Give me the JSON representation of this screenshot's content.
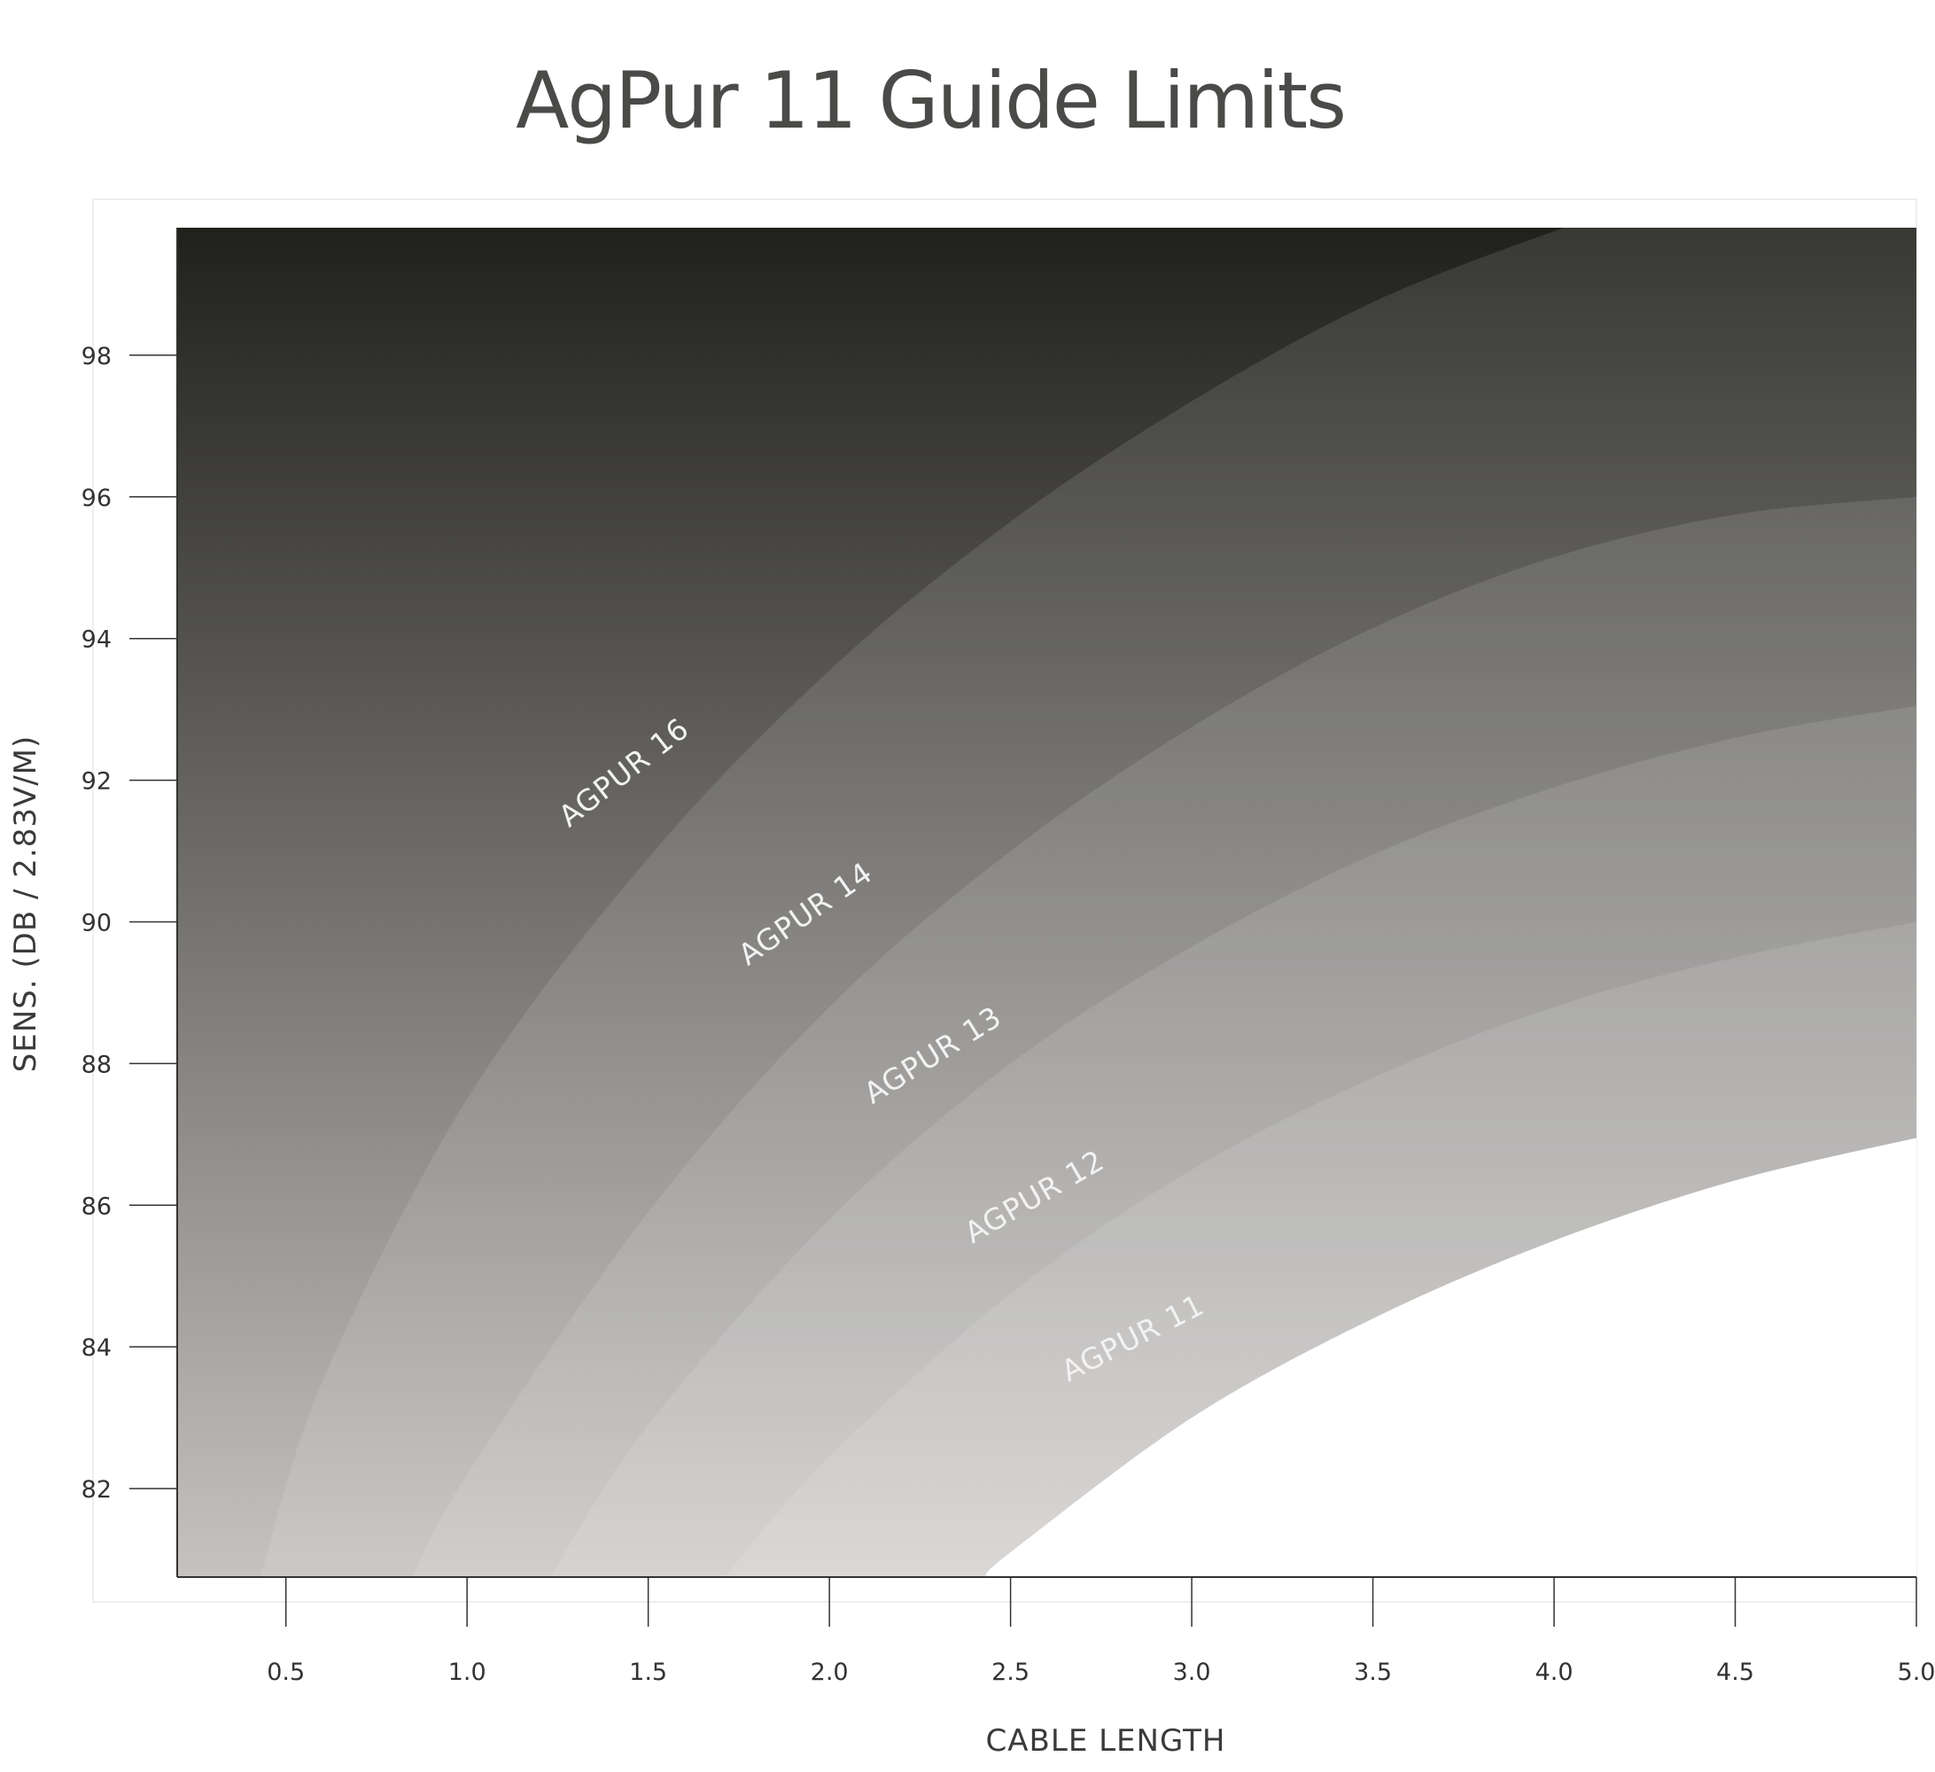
{
  "chart_data": {
    "type": "area",
    "title": "AgPur 11 Guide Limits",
    "xlabel": "CABLE LENGTH",
    "ylabel": "SENS. (DB / 2.83V/M)",
    "xlim": [
      0.2,
      5.0
    ],
    "ylim": [
      80.75,
      99.8
    ],
    "x_ticks": [
      0.5,
      1.0,
      1.5,
      2.0,
      2.5,
      3.0,
      3.5,
      4.0,
      4.5,
      5.0
    ],
    "x_tick_labels": [
      "0.5",
      "1.0",
      "1.5",
      "2.0",
      "2.5",
      "3.0",
      "3.5",
      "4.0",
      "4.5",
      "5.0"
    ],
    "y_ticks": [
      82,
      84,
      86,
      88,
      90,
      92,
      94,
      96,
      98
    ],
    "y_tick_labels": [
      "82",
      "84",
      "86",
      "88",
      "90",
      "92",
      "94",
      "96",
      "98"
    ],
    "grid": false,
    "legend": "none",
    "series": [
      {
        "name": "AGPUR 16",
        "label_at": [
          1.45,
          92.0
        ],
        "label_angle": -38,
        "x": [
          0.43,
          0.6,
          1.0,
          1.5,
          2.0,
          2.5,
          3.0,
          3.5,
          4.0,
          4.07
        ],
        "y": [
          80.75,
          83.5,
          87.5,
          90.9,
          93.55,
          95.65,
          97.35,
          98.75,
          99.75,
          99.8
        ]
      },
      {
        "name": "AGPUR 14",
        "label_at": [
          1.95,
          90.0
        ],
        "label_angle": -35,
        "x": [
          0.85,
          1.0,
          1.5,
          2.0,
          2.5,
          3.0,
          3.5,
          4.0,
          4.5,
          5.0
        ],
        "y": [
          80.75,
          82.2,
          85.9,
          88.8,
          91.0,
          92.75,
          94.15,
          95.15,
          95.75,
          96.0
        ]
      },
      {
        "name": "AGPUR 13",
        "label_at": [
          2.3,
          88.0
        ],
        "label_angle": -32,
        "x": [
          1.23,
          1.5,
          2.0,
          2.5,
          3.0,
          3.5,
          4.0,
          4.5,
          5.0
        ],
        "y": [
          80.75,
          82.9,
          85.8,
          88.0,
          89.65,
          90.95,
          91.9,
          92.6,
          93.05
        ]
      },
      {
        "name": "AGPUR 12",
        "label_at": [
          2.58,
          86.0
        ],
        "label_angle": -30,
        "x": [
          1.71,
          2.0,
          2.5,
          3.0,
          3.5,
          4.0,
          4.5,
          5.0
        ],
        "y": [
          80.75,
          82.45,
          84.75,
          86.5,
          87.8,
          88.8,
          89.5,
          90.0
        ]
      },
      {
        "name": "AGPUR 11",
        "label_at": [
          2.85,
          84.0
        ],
        "label_angle": -27,
        "x": [
          2.43,
          2.5,
          3.0,
          3.5,
          4.0,
          4.5,
          5.0
        ],
        "y": [
          80.75,
          81.1,
          83.0,
          84.4,
          85.5,
          86.35,
          86.95
        ]
      }
    ],
    "colors": {
      "text": "#4a4a48",
      "axis": "#333333",
      "frame": "#e8e8e8",
      "label": "#f2f2f2",
      "gradient_top": "#20201c",
      "gradient_bottom": "#c6c2c0",
      "band_lighten": "#ffffff",
      "background_region": "#ffffff"
    }
  }
}
